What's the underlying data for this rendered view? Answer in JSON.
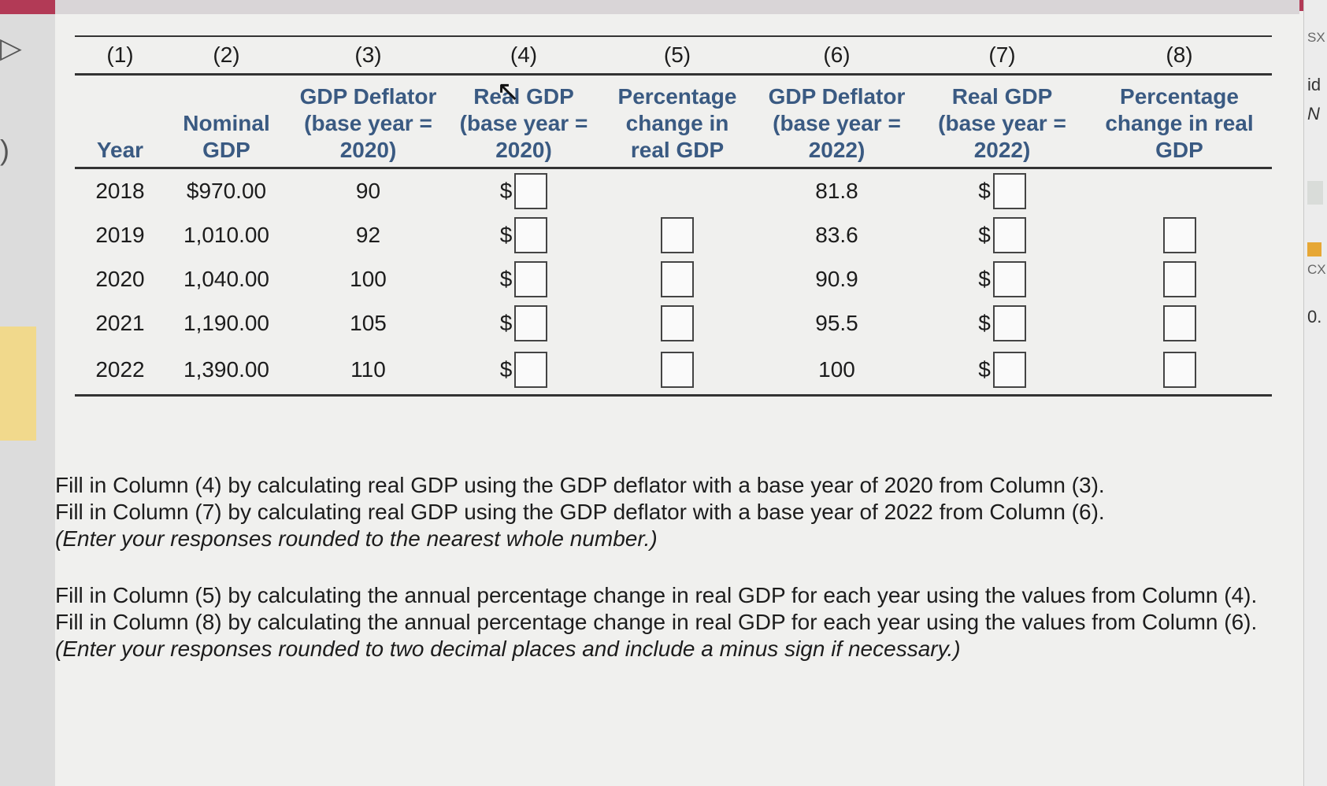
{
  "table": {
    "column_numbers": [
      "(1)",
      "(2)",
      "(3)",
      "(4)",
      "(5)",
      "(6)",
      "(7)",
      "(8)"
    ],
    "headers": [
      "Year",
      "Nominal GDP",
      "GDP Deflator (base year = 2020)",
      "Real GDP (base year = 2020)",
      "Percentage change in real GDP",
      "GDP Deflator (base year = 2022)",
      "Real GDP (base year = 2022)",
      "Percentage change in real GDP"
    ],
    "currency_symbol": "$",
    "rows": [
      {
        "year": "2018",
        "nominal": "$970.00",
        "deflator_2020": "90",
        "deflator_2022": "81.8"
      },
      {
        "year": "2019",
        "nominal": "1,010.00",
        "deflator_2020": "92",
        "deflator_2022": "83.6"
      },
      {
        "year": "2020",
        "nominal": "1,040.00",
        "deflator_2020": "100",
        "deflator_2022": "90.9"
      },
      {
        "year": "2021",
        "nominal": "1,190.00",
        "deflator_2020": "105",
        "deflator_2022": "95.5"
      },
      {
        "year": "2022",
        "nominal": "1,390.00",
        "deflator_2020": "110",
        "deflator_2022": "100"
      }
    ]
  },
  "instructions": {
    "block1": [
      "Fill in Column (4) by calculating real GDP using the GDP deflator with a base year of 2020 from Column (3).",
      "Fill in Column (7) by calculating real GDP using the GDP deflator with a base year of 2022 from Column (6).",
      "(Enter your responses rounded to the nearest whole number.)"
    ],
    "block2": [
      "Fill in Column (5) by calculating the annual percentage change in real GDP for each year using the values from Column (4).",
      "Fill in Column (8) by calculating the annual percentage change in real GDP for each year using the values from Column (6).",
      "(Enter your responses rounded to two decimal places and include a minus sign if necessary.)"
    ]
  },
  "side_panel": {
    "text_sx": "SX",
    "text_id": "id",
    "text_n": "N",
    "text_cx": "CX",
    "text_zero": "0."
  },
  "colors": {
    "header_blue": "#3a5a82",
    "top_bar": "#b23a56"
  }
}
